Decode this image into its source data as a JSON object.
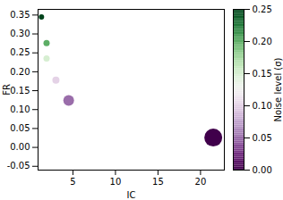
{
  "chart_data": {
    "type": "scatter",
    "x_label": "IC",
    "y_label": "FR",
    "x": [
      1.3,
      1.9,
      1.9,
      3.0,
      4.5,
      21.5
    ],
    "values": [
      0.345,
      0.276,
      0.235,
      0.178,
      0.124,
      0.026
    ],
    "noise": [
      0.25,
      0.2,
      0.15,
      0.1,
      0.05,
      0.0
    ],
    "size": [
      3,
      3.5,
      3.5,
      4,
      6,
      10
    ],
    "color": "PRGn",
    "xlim": [
      0.9,
      22.8
    ],
    "xticks": [
      5,
      10,
      15,
      20
    ],
    "ylim": [
      -0.06,
      0.365
    ],
    "yticks": [
      {
        "value": -0.05,
        "label": "-0.05"
      },
      {
        "value": 0,
        "label": "0.00"
      },
      {
        "value": 0.05,
        "label": "0.05"
      },
      {
        "value": 0.1,
        "label": "0.10"
      },
      {
        "value": 0.15,
        "label": "0.15"
      },
      {
        "value": 0.2,
        "label": "0.20"
      },
      {
        "value": 0.25,
        "label": "0.25"
      },
      {
        "value": 0.3,
        "label": "0.30"
      },
      {
        "value": 0.35,
        "label": "0.35"
      }
    ],
    "grid": false,
    "colorbar": {
      "label": "Noise level (σ)",
      "range": [
        0,
        0.25
      ],
      "ticks": [
        {
          "value": 0,
          "label": "0.00"
        },
        {
          "value": 0.05,
          "label": "0.05"
        },
        {
          "value": 0.1,
          "label": "0.10"
        },
        {
          "value": 0.15,
          "label": "0.15"
        },
        {
          "value": 0.2,
          "label": "0.20"
        },
        {
          "value": 0.25,
          "label": "0.25"
        }
      ]
    }
  }
}
